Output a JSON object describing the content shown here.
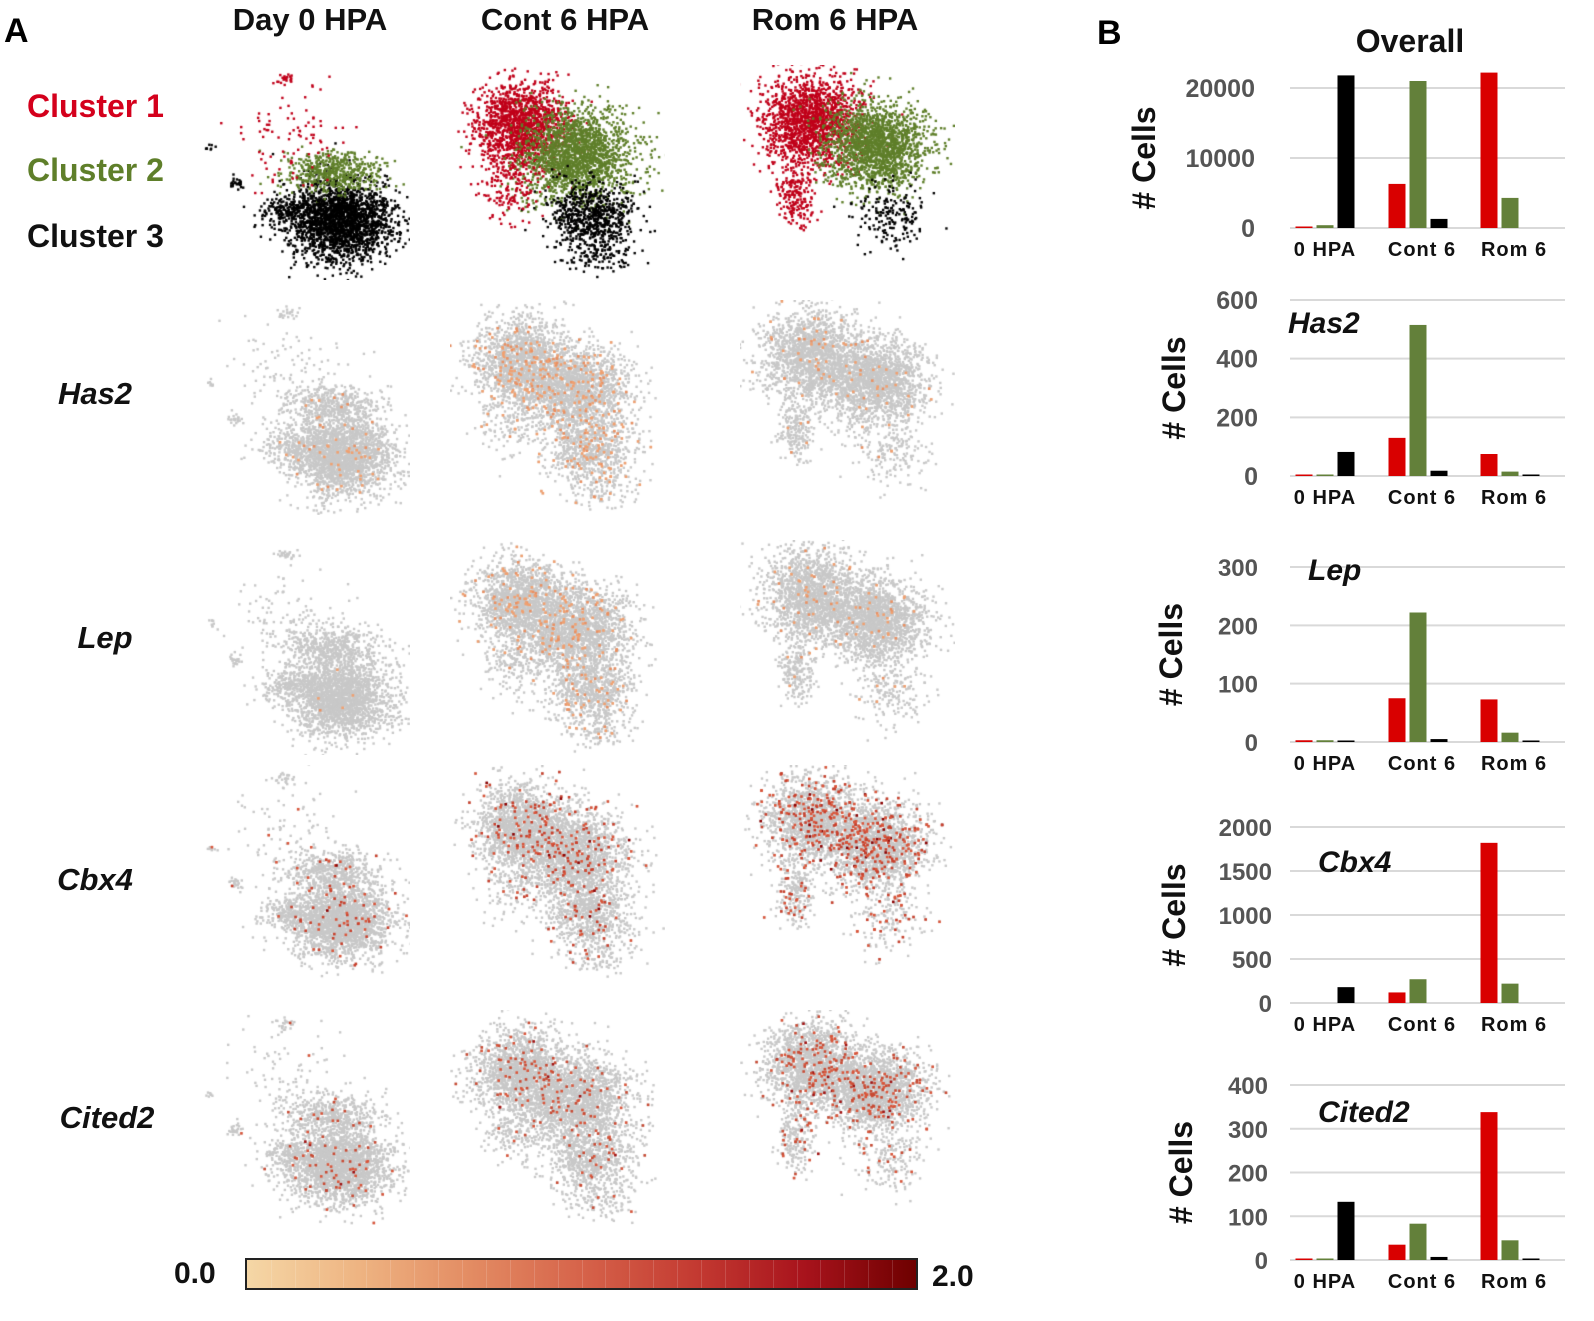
{
  "panel_a": {
    "letter": "A",
    "columns": [
      "Day 0 HPA",
      "Cont 6 HPA",
      "Rom 6 HPA"
    ],
    "clusters": [
      {
        "label": "Cluster 1",
        "color": "#c0001a"
      },
      {
        "label": "Cluster 2",
        "color": "#5f7f2a"
      },
      {
        "label": "Cluster 3",
        "color": "#000000"
      }
    ],
    "genes": [
      "Has2",
      "Lep",
      "Cbx4",
      "Cited2"
    ],
    "colorbar": {
      "min_label": "0.0",
      "max_label": "2.0",
      "low_color": "#f5d7a6",
      "high_color": "#6e0000"
    },
    "background_cell_color": "#c8c8c8"
  },
  "panel_b": {
    "letter": "B"
  },
  "chart_data": [
    {
      "type": "bar",
      "title": "Overall",
      "ylabel": "# Cells",
      "categories": [
        "0 HPA",
        "Cont 6",
        "Rom 6"
      ],
      "yticks": [
        "0",
        "10000",
        "20000"
      ],
      "ylim": [
        0,
        22000
      ],
      "series": [
        {
          "name": "Cluster 1",
          "color": "#d90000",
          "values": [
            100,
            6300,
            22200
          ]
        },
        {
          "name": "Cluster 2",
          "color": "#63803a",
          "values": [
            400,
            21000,
            4300
          ]
        },
        {
          "name": "Cluster 3",
          "color": "#000000",
          "values": [
            21800,
            1300,
            0
          ]
        }
      ]
    },
    {
      "type": "bar",
      "title": "Has2",
      "ylabel": "# Cells",
      "categories": [
        "0 HPA",
        "Cont 6",
        "Rom 6"
      ],
      "yticks": [
        "0",
        "200",
        "400",
        "600"
      ],
      "ylim": [
        0,
        600
      ],
      "series": [
        {
          "name": "Cluster 1",
          "color": "#d90000",
          "values": [
            3,
            130,
            75
          ]
        },
        {
          "name": "Cluster 2",
          "color": "#63803a",
          "values": [
            2,
            515,
            15
          ]
        },
        {
          "name": "Cluster 3",
          "color": "#000000",
          "values": [
            82,
            18,
            3
          ]
        }
      ]
    },
    {
      "type": "bar",
      "title": "Lep",
      "ylabel": "# Cells",
      "categories": [
        "0 HPA",
        "Cont 6",
        "Rom 6"
      ],
      "yticks": [
        "0",
        "100",
        "200",
        "300"
      ],
      "ylim": [
        0,
        300
      ],
      "series": [
        {
          "name": "Cluster 1",
          "color": "#d90000",
          "values": [
            3,
            75,
            73
          ]
        },
        {
          "name": "Cluster 2",
          "color": "#63803a",
          "values": [
            3,
            222,
            16
          ]
        },
        {
          "name": "Cluster 3",
          "color": "#000000",
          "values": [
            2,
            5,
            2
          ]
        }
      ]
    },
    {
      "type": "bar",
      "title": "Cbx4",
      "ylabel": "# Cells",
      "categories": [
        "0 HPA",
        "Cont 6",
        "Rom 6"
      ],
      "yticks": [
        "0",
        "500",
        "1000",
        "1500",
        "2000"
      ],
      "ylim": [
        0,
        2000
      ],
      "series": [
        {
          "name": "Cluster 1",
          "color": "#d90000",
          "values": [
            0,
            120,
            1820
          ]
        },
        {
          "name": "Cluster 2",
          "color": "#63803a",
          "values": [
            0,
            270,
            220
          ]
        },
        {
          "name": "Cluster 3",
          "color": "#000000",
          "values": [
            180,
            0,
            0
          ]
        }
      ]
    },
    {
      "type": "bar",
      "title": "Cited2",
      "ylabel": "# Cells",
      "categories": [
        "0 HPA",
        "Cont 6",
        "Rom 6"
      ],
      "yticks": [
        "0",
        "100",
        "200",
        "300",
        "400"
      ],
      "ylim": [
        0,
        400
      ],
      "series": [
        {
          "name": "Cluster 1",
          "color": "#d90000",
          "values": [
            2,
            35,
            338
          ]
        },
        {
          "name": "Cluster 2",
          "color": "#63803a",
          "values": [
            3,
            83,
            45
          ]
        },
        {
          "name": "Cluster 3",
          "color": "#000000",
          "values": [
            133,
            7,
            2
          ]
        }
      ]
    }
  ]
}
